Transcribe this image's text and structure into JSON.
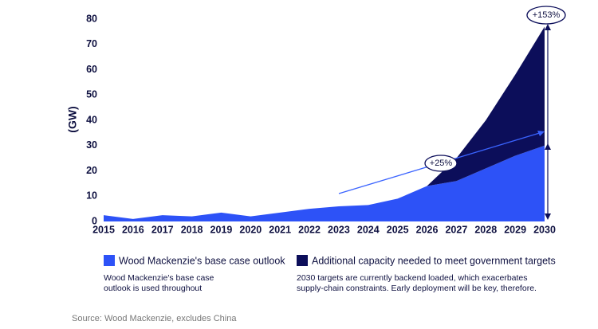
{
  "chart_data": {
    "type": "stacked_area",
    "y_axis_label": "(GW)",
    "x": [
      2015,
      2016,
      2017,
      2018,
      2019,
      2020,
      2021,
      2022,
      2023,
      2024,
      2025,
      2026,
      2027,
      2028,
      2029,
      2030
    ],
    "xlim": [
      2015,
      2030
    ],
    "ylim": [
      0,
      80
    ],
    "yticks": [
      0,
      10,
      20,
      30,
      40,
      50,
      60,
      70,
      80
    ],
    "grid": false,
    "series": [
      {
        "name": "Wood Mackenzie's base case outlook",
        "color": "#2d52f7",
        "values": [
          2.5,
          1,
          2.5,
          2,
          3.5,
          2,
          3.5,
          5,
          6,
          6.5,
          9,
          14,
          16,
          21,
          26,
          30
        ]
      },
      {
        "name": "Additional capacity needed to meet government targets",
        "color": "#0c0e5a",
        "values": [
          null,
          null,
          null,
          null,
          null,
          null,
          null,
          null,
          null,
          null,
          null,
          0,
          9,
          19,
          32,
          47
        ]
      }
    ],
    "annotations": [
      "+153%",
      "+25%"
    ],
    "notes": [
      [
        "Wood Mackenzie's base case",
        "outlook is used throughout"
      ],
      [
        "2030 targets are currently backend loaded, which exacerbates",
        "supply-chain constraints. Early deployment will be key, therefore."
      ]
    ],
    "source": "Source: Wood Mackenzie, excludes China"
  }
}
